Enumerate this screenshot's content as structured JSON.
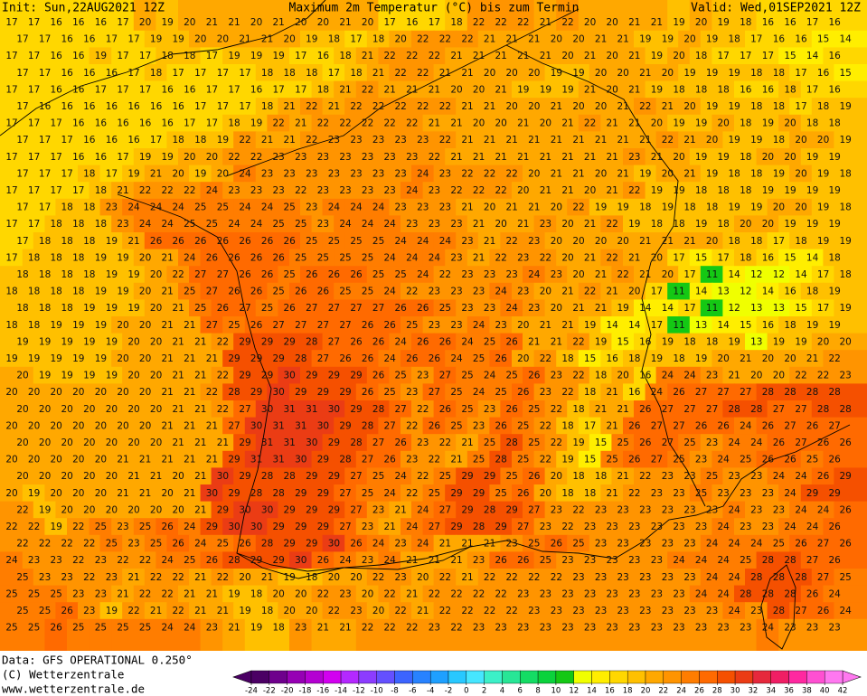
{
  "header": {
    "init": "Init: Sun,22AUG2021 12Z",
    "title": "Maximum 2m Temperatur (°C) bis zum Termin",
    "valid": "Valid: Wed,01SEP2021 12Z"
  },
  "footer": {
    "data": "Data: GFS OPERATIONAL 0.250°",
    "copyright": "(C) Wetterzentrale",
    "url": "www.wetterzentrale.de"
  },
  "grid": {
    "values": [
      [
        17,
        17,
        16,
        16,
        16,
        17,
        20,
        19,
        20,
        21,
        21,
        20,
        21,
        20,
        20,
        21,
        20,
        17,
        16,
        17,
        18,
        22,
        22,
        22,
        21,
        22,
        20,
        20,
        21,
        21,
        19,
        20,
        19,
        18,
        16,
        16,
        17,
        16
      ],
      [
        17,
        17,
        16,
        16,
        17,
        17,
        19,
        19,
        20,
        20,
        21,
        21,
        20,
        19,
        18,
        17,
        18,
        20,
        22,
        22,
        22,
        21,
        21,
        21,
        20,
        20,
        21,
        21,
        19,
        19,
        20,
        19,
        18,
        17,
        16,
        16,
        15,
        14
      ],
      [
        17,
        17,
        16,
        16,
        19,
        17,
        17,
        18,
        18,
        17,
        19,
        19,
        19,
        17,
        16,
        18,
        21,
        22,
        22,
        22,
        21,
        21,
        21,
        21,
        21,
        20,
        21,
        20,
        21,
        19,
        20,
        18,
        17,
        17,
        17,
        15,
        14,
        16
      ],
      [
        17,
        17,
        16,
        16,
        16,
        17,
        18,
        17,
        17,
        17,
        17,
        18,
        18,
        18,
        17,
        18,
        21,
        22,
        22,
        21,
        21,
        20,
        20,
        20,
        19,
        19,
        20,
        20,
        21,
        20,
        19,
        19,
        19,
        18,
        18,
        17,
        16,
        15
      ],
      [
        17,
        17,
        16,
        16,
        17,
        17,
        17,
        16,
        16,
        17,
        17,
        16,
        17,
        17,
        18,
        21,
        22,
        21,
        21,
        21,
        20,
        20,
        21,
        19,
        19,
        19,
        21,
        20,
        21,
        19,
        18,
        18,
        18,
        16,
        16,
        18,
        17,
        16
      ],
      [
        17,
        16,
        16,
        16,
        16,
        16,
        16,
        16,
        17,
        17,
        17,
        18,
        21,
        22,
        21,
        22,
        22,
        22,
        22,
        22,
        21,
        21,
        20,
        20,
        21,
        20,
        20,
        21,
        22,
        21,
        20,
        19,
        19,
        18,
        18,
        17,
        18,
        19
      ],
      [
        17,
        17,
        17,
        16,
        16,
        16,
        16,
        16,
        17,
        17,
        18,
        19,
        22,
        21,
        22,
        22,
        22,
        22,
        22,
        21,
        21,
        20,
        20,
        21,
        20,
        21,
        22,
        21,
        21,
        20,
        19,
        19,
        20,
        18,
        19,
        20,
        18,
        18
      ],
      [
        17,
        17,
        17,
        16,
        16,
        16,
        17,
        18,
        18,
        19,
        22,
        21,
        21,
        22,
        23,
        23,
        23,
        23,
        23,
        22,
        21,
        21,
        21,
        21,
        21,
        21,
        21,
        21,
        21,
        22,
        21,
        20,
        19,
        19,
        18,
        20,
        20,
        19
      ],
      [
        17,
        17,
        17,
        16,
        16,
        17,
        19,
        19,
        20,
        20,
        22,
        22,
        23,
        23,
        23,
        23,
        23,
        23,
        23,
        22,
        21,
        21,
        21,
        21,
        21,
        21,
        21,
        21,
        23,
        21,
        20,
        19,
        19,
        18,
        20,
        20,
        19,
        19
      ],
      [
        17,
        17,
        17,
        18,
        17,
        19,
        21,
        20,
        19,
        20,
        24,
        23,
        23,
        23,
        23,
        23,
        23,
        23,
        24,
        23,
        22,
        22,
        22,
        20,
        21,
        21,
        20,
        21,
        19,
        20,
        21,
        19,
        18,
        18,
        19,
        20,
        19,
        18
      ],
      [
        17,
        17,
        17,
        17,
        18,
        21,
        22,
        22,
        22,
        24,
        23,
        23,
        23,
        22,
        23,
        23,
        23,
        23,
        24,
        23,
        22,
        22,
        22,
        20,
        21,
        21,
        20,
        21,
        22,
        19,
        19,
        18,
        18,
        18,
        19,
        19,
        19,
        19
      ],
      [
        17,
        17,
        18,
        18,
        23,
        24,
        24,
        24,
        25,
        25,
        24,
        24,
        25,
        23,
        24,
        24,
        24,
        23,
        23,
        23,
        21,
        20,
        21,
        21,
        20,
        22,
        19,
        19,
        18,
        19,
        18,
        18,
        19,
        19,
        20,
        20,
        19,
        18
      ],
      [
        17,
        17,
        18,
        18,
        18,
        23,
        24,
        24,
        25,
        25,
        24,
        24,
        25,
        25,
        23,
        24,
        24,
        24,
        23,
        23,
        23,
        21,
        20,
        21,
        23,
        20,
        21,
        22,
        19,
        18,
        18,
        19,
        18,
        20,
        20,
        19,
        19,
        19
      ],
      [
        17,
        18,
        18,
        18,
        19,
        21,
        26,
        26,
        26,
        26,
        26,
        26,
        26,
        25,
        25,
        25,
        25,
        24,
        24,
        24,
        23,
        21,
        22,
        23,
        20,
        20,
        20,
        20,
        21,
        21,
        21,
        20,
        18,
        18,
        17,
        18,
        19,
        19
      ],
      [
        17,
        18,
        18,
        18,
        19,
        19,
        20,
        21,
        24,
        26,
        26,
        26,
        26,
        25,
        25,
        25,
        25,
        24,
        24,
        24,
        23,
        21,
        22,
        23,
        22,
        20,
        21,
        22,
        21,
        20,
        17,
        15,
        17,
        18,
        16,
        15,
        14,
        18
      ],
      [
        18,
        18,
        18,
        18,
        19,
        19,
        20,
        22,
        27,
        27,
        26,
        26,
        25,
        26,
        26,
        26,
        25,
        25,
        24,
        22,
        23,
        23,
        23,
        24,
        23,
        20,
        21,
        22,
        21,
        20,
        17,
        11,
        14,
        12,
        12,
        14,
        17,
        18
      ],
      [
        18,
        18,
        18,
        18,
        19,
        19,
        20,
        21,
        25,
        27,
        26,
        26,
        25,
        26,
        26,
        25,
        25,
        24,
        22,
        23,
        23,
        23,
        24,
        23,
        20,
        21,
        22,
        21,
        20,
        17,
        11,
        14,
        13,
        12,
        14,
        16,
        18,
        19
      ],
      [
        18,
        18,
        18,
        19,
        19,
        19,
        20,
        21,
        25,
        26,
        27,
        25,
        26,
        27,
        27,
        27,
        27,
        26,
        26,
        25,
        23,
        23,
        24,
        23,
        20,
        21,
        21,
        19,
        14,
        14,
        17,
        11,
        12,
        13,
        13,
        15,
        17,
        19
      ],
      [
        18,
        18,
        19,
        19,
        19,
        20,
        20,
        21,
        21,
        27,
        25,
        26,
        27,
        27,
        27,
        27,
        26,
        26,
        25,
        23,
        23,
        24,
        23,
        20,
        21,
        21,
        19,
        14,
        14,
        17,
        11,
        13,
        14,
        15,
        16,
        18,
        19,
        19
      ],
      [
        19,
        19,
        19,
        19,
        19,
        20,
        20,
        21,
        21,
        22,
        29,
        29,
        29,
        28,
        27,
        26,
        26,
        24,
        26,
        26,
        24,
        25,
        26,
        21,
        21,
        22,
        19,
        15,
        16,
        19,
        18,
        18,
        19,
        13,
        19,
        19,
        20,
        20
      ],
      [
        19,
        19,
        19,
        19,
        19,
        20,
        20,
        21,
        21,
        21,
        29,
        29,
        29,
        28,
        27,
        26,
        26,
        24,
        26,
        26,
        24,
        25,
        26,
        20,
        22,
        18,
        15,
        16,
        18,
        19,
        18,
        19,
        20,
        21,
        20,
        20,
        21,
        22
      ],
      [
        20,
        19,
        19,
        19,
        19,
        20,
        20,
        21,
        21,
        22,
        29,
        29,
        30,
        29,
        29,
        29,
        26,
        25,
        23,
        27,
        25,
        24,
        25,
        26,
        23,
        22,
        18,
        20,
        16,
        24,
        24,
        23,
        21,
        20,
        20,
        22,
        22,
        23
      ],
      [
        20,
        20,
        20,
        20,
        20,
        20,
        20,
        21,
        21,
        22,
        28,
        29,
        30,
        29,
        29,
        29,
        26,
        25,
        23,
        27,
        25,
        24,
        25,
        26,
        23,
        22,
        18,
        21,
        16,
        24,
        26,
        27,
        27,
        27,
        28,
        28,
        28,
        28
      ],
      [
        20,
        20,
        20,
        20,
        20,
        20,
        20,
        21,
        21,
        22,
        27,
        30,
        31,
        31,
        30,
        29,
        28,
        27,
        22,
        26,
        25,
        23,
        26,
        25,
        22,
        18,
        21,
        21,
        26,
        27,
        27,
        27,
        28,
        28,
        27,
        27,
        28,
        28
      ],
      [
        20,
        20,
        20,
        20,
        20,
        20,
        20,
        21,
        21,
        21,
        27,
        30,
        31,
        31,
        30,
        29,
        28,
        27,
        22,
        26,
        25,
        23,
        26,
        25,
        22,
        18,
        17,
        21,
        26,
        27,
        27,
        26,
        26,
        24,
        26,
        27,
        26,
        27
      ],
      [
        20,
        20,
        20,
        20,
        20,
        20,
        20,
        21,
        21,
        21,
        29,
        31,
        31,
        30,
        29,
        28,
        27,
        26,
        23,
        22,
        21,
        25,
        28,
        25,
        22,
        19,
        15,
        25,
        26,
        27,
        25,
        23,
        24,
        24,
        26,
        27,
        26,
        26
      ],
      [
        20,
        20,
        20,
        20,
        20,
        21,
        21,
        21,
        21,
        21,
        29,
        31,
        31,
        30,
        29,
        28,
        27,
        26,
        23,
        22,
        21,
        25,
        28,
        25,
        22,
        19,
        15,
        25,
        26,
        27,
        25,
        23,
        24,
        25,
        26,
        26,
        25,
        26
      ],
      [
        20,
        20,
        20,
        20,
        20,
        21,
        21,
        20,
        21,
        30,
        29,
        28,
        28,
        29,
        29,
        27,
        25,
        24,
        22,
        25,
        29,
        29,
        25,
        26,
        20,
        18,
        18,
        21,
        22,
        23,
        23,
        25,
        23,
        23,
        24,
        24,
        26,
        29
      ],
      [
        20,
        19,
        20,
        20,
        20,
        21,
        21,
        20,
        21,
        30,
        29,
        28,
        28,
        29,
        29,
        27,
        25,
        24,
        22,
        25,
        29,
        29,
        25,
        26,
        20,
        18,
        18,
        21,
        22,
        23,
        23,
        25,
        23,
        23,
        23,
        24,
        29,
        29
      ],
      [
        22,
        19,
        20,
        20,
        20,
        20,
        20,
        20,
        21,
        29,
        30,
        30,
        29,
        29,
        29,
        27,
        23,
        21,
        24,
        27,
        29,
        28,
        29,
        27,
        23,
        22,
        23,
        23,
        23,
        23,
        23,
        23,
        24,
        23,
        23,
        24,
        24,
        26
      ],
      [
        22,
        22,
        19,
        22,
        25,
        23,
        25,
        26,
        24,
        29,
        30,
        30,
        29,
        29,
        29,
        27,
        23,
        21,
        24,
        27,
        29,
        28,
        29,
        27,
        23,
        22,
        23,
        23,
        23,
        23,
        23,
        23,
        24,
        23,
        23,
        24,
        24,
        26
      ],
      [
        22,
        22,
        22,
        22,
        25,
        23,
        25,
        26,
        24,
        25,
        26,
        28,
        29,
        29,
        30,
        26,
        24,
        23,
        24,
        21,
        21,
        21,
        23,
        25,
        26,
        25,
        23,
        23,
        23,
        23,
        23,
        24,
        24,
        24,
        25,
        26,
        27,
        26
      ],
      [
        24,
        23,
        23,
        22,
        23,
        22,
        22,
        24,
        25,
        26,
        28,
        29,
        29,
        30,
        26,
        24,
        23,
        24,
        21,
        21,
        21,
        23,
        26,
        26,
        25,
        23,
        23,
        23,
        23,
        23,
        24,
        24,
        24,
        25,
        28,
        28,
        27,
        26
      ],
      [
        25,
        23,
        23,
        22,
        23,
        21,
        22,
        22,
        21,
        22,
        20,
        21,
        19,
        18,
        20,
        20,
        22,
        23,
        20,
        22,
        21,
        22,
        22,
        22,
        22,
        23,
        23,
        23,
        23,
        23,
        23,
        24,
        24,
        28,
        28,
        28,
        27,
        25
      ],
      [
        25,
        25,
        25,
        23,
        23,
        21,
        22,
        22,
        21,
        21,
        19,
        18,
        20,
        20,
        22,
        23,
        20,
        22,
        21,
        22,
        22,
        22,
        22,
        23,
        23,
        23,
        23,
        23,
        23,
        23,
        23,
        24,
        24,
        28,
        28,
        28,
        26,
        24
      ],
      [
        25,
        25,
        26,
        23,
        19,
        22,
        21,
        22,
        21,
        21,
        19,
        18,
        20,
        20,
        22,
        23,
        20,
        22,
        21,
        22,
        22,
        22,
        22,
        23,
        23,
        23,
        23,
        23,
        23,
        23,
        23,
        23,
        24,
        23,
        28,
        27,
        26,
        24
      ],
      [
        25,
        25,
        26,
        25,
        25,
        25,
        25,
        24,
        24,
        23,
        21,
        19,
        18,
        23,
        21,
        21,
        22,
        22,
        22,
        23,
        22,
        23,
        23,
        23,
        23,
        23,
        23,
        23,
        23,
        23,
        23,
        23,
        23,
        23,
        24,
        23,
        23,
        23
      ]
    ]
  },
  "colorbar": {
    "ticks": [
      -24,
      -22,
      -20,
      -18,
      -16,
      -14,
      -12,
      -10,
      -8,
      -6,
      -4,
      -2,
      0,
      2,
      4,
      6,
      8,
      10,
      12,
      14,
      16,
      18,
      20,
      22,
      24,
      26,
      28,
      30,
      32,
      34,
      36,
      38,
      40,
      42
    ],
    "colors": [
      "#4b0064",
      "#6e008c",
      "#9600b4",
      "#b400d2",
      "#d200f0",
      "#b428ff",
      "#8c3cff",
      "#6450ff",
      "#3c64ff",
      "#2882ff",
      "#1ea0ff",
      "#28c8ff",
      "#46e6ff",
      "#3cf0c8",
      "#28e696",
      "#14dc64",
      "#0ad23c",
      "#14c814",
      "#f0ff00",
      "#ffee00",
      "#ffd700",
      "#ffc000",
      "#ffa800",
      "#ff9400",
      "#ff7d00",
      "#ff6a00",
      "#f55000",
      "#eb3c14",
      "#e6283c",
      "#f01e64",
      "#ff28a0",
      "#ff50d2",
      "#ff78f0"
    ]
  }
}
